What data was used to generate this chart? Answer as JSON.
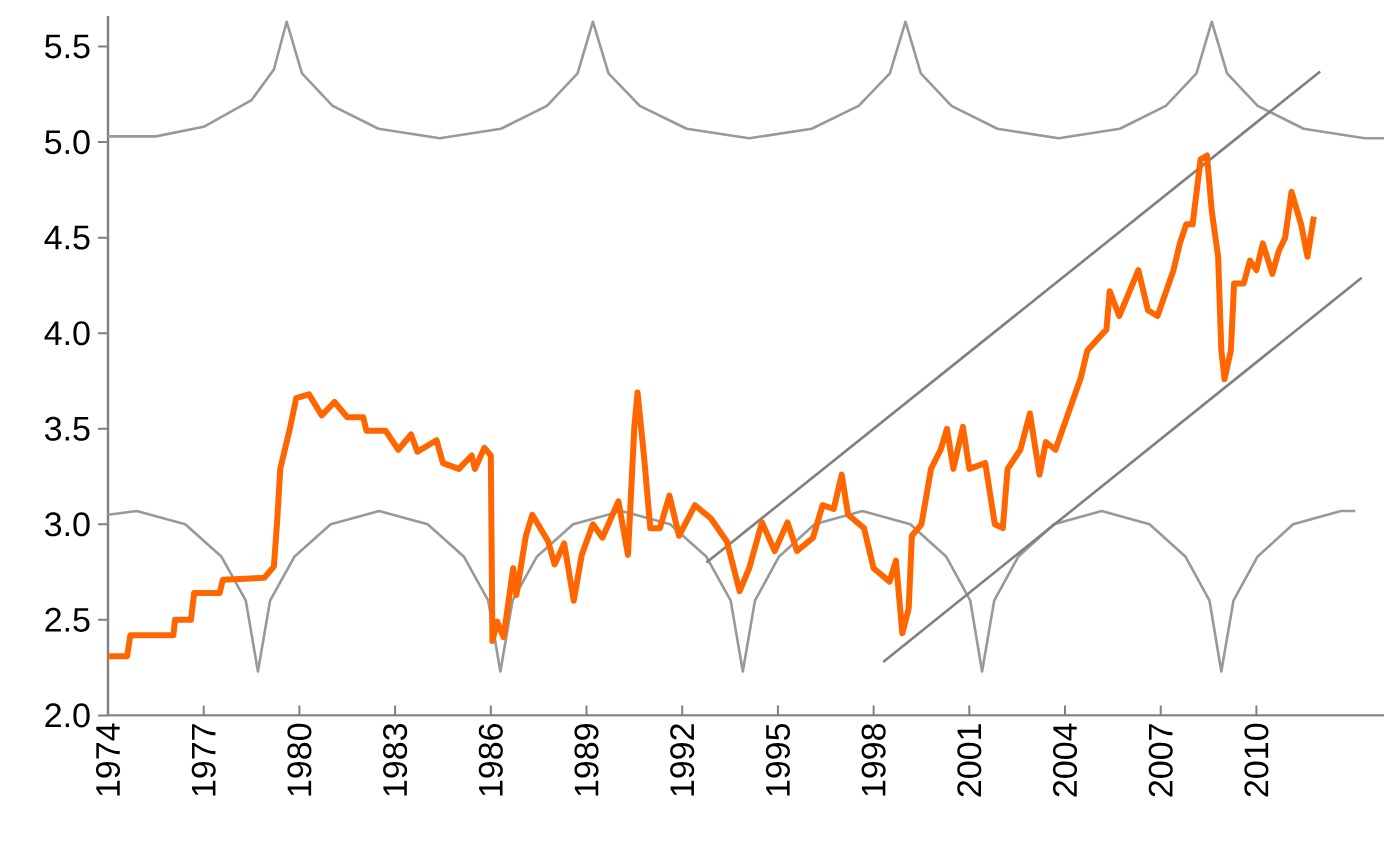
{
  "chart_data": {
    "type": "line",
    "xlim": [
      1974,
      2014
    ],
    "ylim": [
      2.0,
      5.66
    ],
    "xticks": [
      1974,
      1977,
      1980,
      1983,
      1986,
      1989,
      1992,
      1995,
      1998,
      2001,
      2004,
      2007,
      2010
    ],
    "yticks": [
      {
        "value": 2.0,
        "label": "2.0"
      },
      {
        "value": 2.5,
        "label": "2.5"
      },
      {
        "value": 3.0,
        "label": "3.0"
      },
      {
        "value": 3.5,
        "label": "3.5"
      },
      {
        "value": 4.0,
        "label": "4.0"
      },
      {
        "value": 4.5,
        "label": "4.5"
      },
      {
        "value": 5.0,
        "label": "5.0"
      },
      {
        "value": 5.5,
        "label": "5.5"
      }
    ],
    "series": [
      {
        "color": "#ff6600",
        "x": [
          1974.0,
          1974.6,
          1974.7,
          1976.05,
          1976.1,
          1976.6,
          1976.7,
          1977.5,
          1977.6,
          1978.9,
          1979.2,
          1979.3,
          1979.4,
          1979.7,
          1979.9,
          1980.3,
          1980.7,
          1981.1,
          1981.5,
          1982.0,
          1982.1,
          1982.7,
          1983.1,
          1983.5,
          1983.7,
          1984.3,
          1984.5,
          1985.0,
          1985.4,
          1985.5,
          1985.8,
          1986.0,
          1986.05,
          1986.2,
          1986.4,
          1986.7,
          1986.8,
          1987.1,
          1987.3,
          1987.8,
          1988.0,
          1988.3,
          1988.6,
          1988.85,
          1989.2,
          1989.5,
          1990.0,
          1990.3,
          1990.5,
          1990.6,
          1990.8,
          1991.0,
          1991.3,
          1991.6,
          1991.9,
          1992.4,
          1992.9,
          1993.4,
          1993.8,
          1994.1,
          1994.5,
          1994.9,
          1995.3,
          1995.6,
          1996.1,
          1996.4,
          1996.75,
          1997.0,
          1997.2,
          1997.7,
          1998.0,
          1998.5,
          1998.7,
          1998.9,
          1999.1,
          1999.2,
          1999.5,
          1999.8,
          2000.1,
          2000.3,
          2000.5,
          2000.8,
          2001.0,
          2001.5,
          2001.8,
          2002.05,
          2002.2,
          2002.6,
          2002.9,
          2003.2,
          2003.4,
          2003.7,
          2004.1,
          2004.5,
          2004.7,
          2005.3,
          2005.4,
          2005.7,
          2006.3,
          2006.6,
          2006.9,
          2007.4,
          2007.6,
          2007.8,
          2008.0,
          2008.25,
          2008.45,
          2008.6,
          2008.8,
          2008.9,
          2009.0,
          2009.2,
          2009.3,
          2009.6,
          2009.8,
          2010.0,
          2010.2,
          2010.5,
          2010.7,
          2010.9,
          2011.1,
          2011.4,
          2011.6,
          2011.8
        ],
        "values": [
          2.31,
          2.31,
          2.42,
          2.42,
          2.5,
          2.5,
          2.64,
          2.64,
          2.71,
          2.72,
          2.78,
          3.01,
          3.29,
          3.5,
          3.66,
          3.68,
          3.57,
          3.64,
          3.56,
          3.56,
          3.49,
          3.49,
          3.39,
          3.47,
          3.38,
          3.44,
          3.32,
          3.29,
          3.36,
          3.29,
          3.4,
          3.36,
          2.39,
          2.49,
          2.41,
          2.77,
          2.63,
          2.94,
          3.05,
          2.91,
          2.79,
          2.9,
          2.6,
          2.84,
          3.0,
          2.93,
          3.12,
          2.84,
          3.51,
          3.69,
          3.36,
          2.98,
          2.98,
          3.15,
          2.94,
          3.1,
          3.03,
          2.91,
          2.65,
          2.77,
          3.01,
          2.86,
          3.01,
          2.86,
          2.93,
          3.1,
          3.08,
          3.26,
          3.05,
          2.98,
          2.77,
          2.7,
          2.81,
          2.43,
          2.56,
          2.94,
          3.0,
          3.29,
          3.39,
          3.5,
          3.29,
          3.51,
          3.29,
          3.32,
          3.0,
          2.98,
          3.29,
          3.39,
          3.58,
          3.26,
          3.43,
          3.39,
          3.58,
          3.77,
          3.91,
          4.02,
          4.22,
          4.09,
          4.33,
          4.12,
          4.09,
          4.33,
          4.47,
          4.57,
          4.57,
          4.91,
          4.93,
          4.64,
          4.4,
          3.91,
          3.76,
          3.91,
          4.26,
          4.26,
          4.38,
          4.33,
          4.47,
          4.31,
          4.43,
          4.5,
          4.74,
          4.57,
          4.4,
          4.61
        ]
      },
      {
        "color": "#999999",
        "x": [
          1974,
          1975.5,
          1977.0,
          1978.5,
          1979.2,
          1979.6,
          1980.08,
          1981.04,
          1982.48,
          1984.4,
          1986.32,
          1987.76,
          1988.72,
          1989.2,
          1989.69,
          1990.67,
          1992.14,
          1994.1,
          1996.06,
          1997.53,
          1998.51,
          1999.0,
          1999.48,
          2000.44,
          2001.88,
          2003.8,
          2005.72,
          2007.16,
          2008.12,
          2008.6,
          2009.08,
          2010.04,
          2011.48,
          2013.4,
          2014
        ],
        "values": [
          5.03,
          5.03,
          5.08,
          5.22,
          5.38,
          5.63,
          5.36,
          5.19,
          5.07,
          5.02,
          5.07,
          5.19,
          5.36,
          5.63,
          5.36,
          5.19,
          5.07,
          5.02,
          5.07,
          5.19,
          5.36,
          5.63,
          5.36,
          5.19,
          5.07,
          5.02,
          5.07,
          5.19,
          5.36,
          5.63,
          5.36,
          5.19,
          5.07,
          5.02,
          5.02
        ]
      },
      {
        "color": "#999999",
        "x": [
          1974,
          1974.9,
          1976.42,
          1977.56,
          1978.32,
          1978.7,
          1979.08,
          1979.84,
          1980.98,
          1982.5,
          1984.02,
          1985.16,
          1985.92,
          1986.3,
          1986.68,
          1987.44,
          1988.58,
          1990.1,
          1991.62,
          1992.76,
          1993.52,
          1993.9,
          1994.28,
          1995.03,
          1996.15,
          1997.65,
          1999.15,
          2000.28,
          2001.03,
          2001.4,
          2001.78,
          2002.53,
          2003.65,
          2005.15,
          2006.65,
          2007.78,
          2008.53,
          2008.9,
          2009.28,
          2010.03,
          2011.15,
          2012.65,
          2013.1
        ],
        "values": [
          3.05,
          3.07,
          3.0,
          2.83,
          2.6,
          2.23,
          2.6,
          2.83,
          3.0,
          3.07,
          3.0,
          2.83,
          2.6,
          2.23,
          2.6,
          2.83,
          3.0,
          3.07,
          3.0,
          2.83,
          2.6,
          2.23,
          2.6,
          2.83,
          3.0,
          3.07,
          3.0,
          2.83,
          2.6,
          2.23,
          2.6,
          2.83,
          3.0,
          3.07,
          3.0,
          2.83,
          2.6,
          2.23,
          2.6,
          2.83,
          3.0,
          3.07,
          3.07
        ]
      },
      {
        "color": "#808080",
        "x": [
          1992.76,
          2012.0
        ],
        "values": [
          2.8,
          5.37
        ]
      },
      {
        "color": "#808080",
        "x": [
          1998.3,
          2013.3
        ],
        "values": [
          2.28,
          4.29
        ]
      }
    ]
  }
}
